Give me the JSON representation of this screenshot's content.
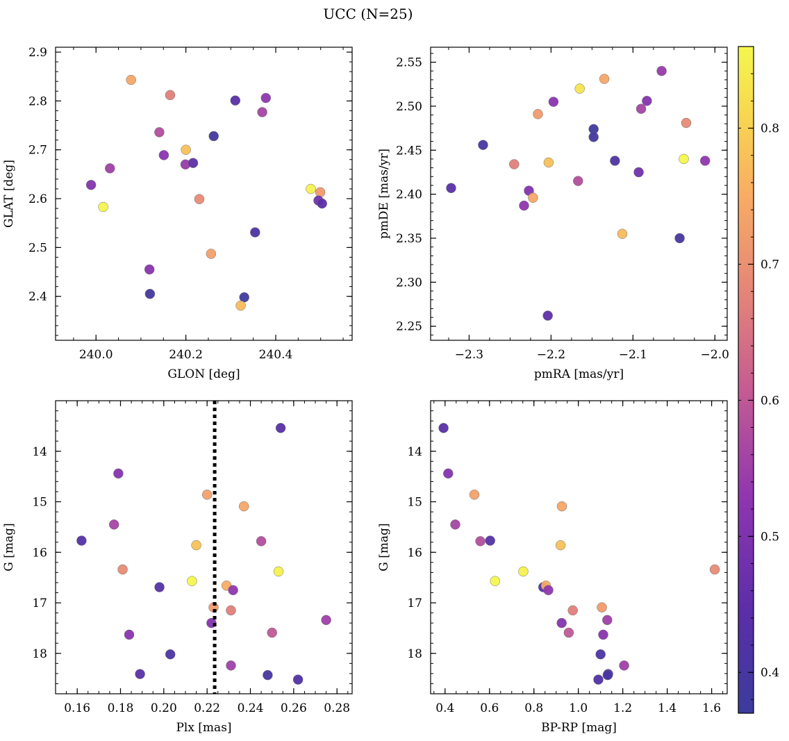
{
  "figure": {
    "title": "UCC (N=25)"
  },
  "colorbar": {
    "range": [
      0.37,
      0.86
    ],
    "ticks": [
      0.4,
      0.5,
      0.6,
      0.7,
      0.8
    ],
    "tick_labels": [
      "0.4",
      "0.5",
      "0.6",
      "0.7",
      "0.8"
    ],
    "colormap": "plasma"
  },
  "chart_data": [
    {
      "type": "scatter",
      "title": "",
      "xlabel": "GLON [deg]",
      "ylabel": "GLAT [deg]",
      "xlim": [
        239.91,
        240.57
      ],
      "ylim": [
        2.31,
        2.91
      ],
      "xticks": [
        240.0,
        240.2,
        240.4
      ],
      "xtick_labels": [
        "240.0",
        "240.2",
        "240.4"
      ],
      "yticks": [
        2.4,
        2.5,
        2.6,
        2.7,
        2.8,
        2.9
      ],
      "ytick_labels": [
        "2.4",
        "2.5",
        "2.6",
        "2.7",
        "2.8",
        "2.9"
      ],
      "invert_y": false,
      "points": [
        {
          "x": 240.078,
          "y": 2.843,
          "c": 0.74
        },
        {
          "x": 240.165,
          "y": 2.812,
          "c": 0.67
        },
        {
          "x": 240.31,
          "y": 2.801,
          "c": 0.44
        },
        {
          "x": 240.378,
          "y": 2.806,
          "c": 0.53
        },
        {
          "x": 240.37,
          "y": 2.777,
          "c": 0.56
        },
        {
          "x": 240.141,
          "y": 2.736,
          "c": 0.58
        },
        {
          "x": 240.262,
          "y": 2.728,
          "c": 0.39
        },
        {
          "x": 240.2,
          "y": 2.7,
          "c": 0.78
        },
        {
          "x": 240.151,
          "y": 2.689,
          "c": 0.52
        },
        {
          "x": 240.199,
          "y": 2.67,
          "c": 0.54
        },
        {
          "x": 240.216,
          "y": 2.673,
          "c": 0.45
        },
        {
          "x": 240.031,
          "y": 2.662,
          "c": 0.55
        },
        {
          "x": 239.989,
          "y": 2.628,
          "c": 0.51
        },
        {
          "x": 240.478,
          "y": 2.62,
          "c": 0.85
        },
        {
          "x": 240.499,
          "y": 2.613,
          "c": 0.72
        },
        {
          "x": 240.495,
          "y": 2.596,
          "c": 0.48
        },
        {
          "x": 240.503,
          "y": 2.59,
          "c": 0.45
        },
        {
          "x": 240.016,
          "y": 2.583,
          "c": 0.86
        },
        {
          "x": 240.23,
          "y": 2.599,
          "c": 0.69
        },
        {
          "x": 240.354,
          "y": 2.531,
          "c": 0.41
        },
        {
          "x": 240.256,
          "y": 2.487,
          "c": 0.73
        },
        {
          "x": 240.119,
          "y": 2.455,
          "c": 0.52
        },
        {
          "x": 240.12,
          "y": 2.405,
          "c": 0.39
        },
        {
          "x": 240.33,
          "y": 2.398,
          "c": 0.38
        },
        {
          "x": 240.322,
          "y": 2.381,
          "c": 0.77
        }
      ]
    },
    {
      "type": "scatter",
      "title": "",
      "xlabel": "pmRA [mas/yr]",
      "ylabel": "pmDE [mas/yr]",
      "xlim": [
        -2.347,
        -1.985
      ],
      "ylim": [
        2.234,
        2.567
      ],
      "xticks": [
        -2.3,
        -2.2,
        -2.1,
        -2.0
      ],
      "xtick_labels": [
        "−2.3",
        "−2.2",
        "−2.1",
        "−2.0"
      ],
      "yticks": [
        2.25,
        2.3,
        2.35,
        2.4,
        2.45,
        2.5,
        2.55
      ],
      "ytick_labels": [
        "2.25",
        "2.30",
        "2.35",
        "2.40",
        "2.45",
        "2.50",
        "2.55"
      ],
      "invert_y": false,
      "points": [
        {
          "x": -2.065,
          "y": 2.54,
          "c": 0.54
        },
        {
          "x": -2.135,
          "y": 2.531,
          "c": 0.74
        },
        {
          "x": -2.165,
          "y": 2.52,
          "c": 0.83
        },
        {
          "x": -2.083,
          "y": 2.506,
          "c": 0.51
        },
        {
          "x": -2.197,
          "y": 2.505,
          "c": 0.52
        },
        {
          "x": -2.09,
          "y": 2.497,
          "c": 0.56
        },
        {
          "x": -2.216,
          "y": 2.491,
          "c": 0.72
        },
        {
          "x": -2.035,
          "y": 2.481,
          "c": 0.69
        },
        {
          "x": -2.148,
          "y": 2.474,
          "c": 0.38
        },
        {
          "x": -2.148,
          "y": 2.465,
          "c": 0.39
        },
        {
          "x": -2.283,
          "y": 2.456,
          "c": 0.4
        },
        {
          "x": -2.038,
          "y": 2.44,
          "c": 0.86
        },
        {
          "x": -2.012,
          "y": 2.438,
          "c": 0.53
        },
        {
          "x": -2.122,
          "y": 2.438,
          "c": 0.41
        },
        {
          "x": -2.203,
          "y": 2.436,
          "c": 0.78
        },
        {
          "x": -2.245,
          "y": 2.434,
          "c": 0.67
        },
        {
          "x": -2.093,
          "y": 2.425,
          "c": 0.48
        },
        {
          "x": -2.167,
          "y": 2.415,
          "c": 0.58
        },
        {
          "x": -2.322,
          "y": 2.407,
          "c": 0.44
        },
        {
          "x": -2.227,
          "y": 2.404,
          "c": 0.51
        },
        {
          "x": -2.222,
          "y": 2.396,
          "c": 0.74
        },
        {
          "x": -2.233,
          "y": 2.387,
          "c": 0.53
        },
        {
          "x": -2.113,
          "y": 2.355,
          "c": 0.77
        },
        {
          "x": -2.043,
          "y": 2.35,
          "c": 0.4
        },
        {
          "x": -2.204,
          "y": 2.262,
          "c": 0.45
        }
      ]
    },
    {
      "type": "scatter",
      "title": "",
      "xlabel": "Plx [mas]",
      "ylabel": "G [mag]",
      "xlim": [
        0.15,
        0.287
      ],
      "ylim": [
        13.0,
        18.8
      ],
      "xticks": [
        0.16,
        0.18,
        0.2,
        0.22,
        0.24,
        0.26,
        0.28
      ],
      "xtick_labels": [
        "0.16",
        "0.18",
        "0.20",
        "0.22",
        "0.24",
        "0.26",
        "0.28"
      ],
      "yticks": [
        14,
        15,
        16,
        17,
        18
      ],
      "ytick_labels": [
        "14",
        "15",
        "16",
        "17",
        "18"
      ],
      "invert_y": true,
      "vline": {
        "x": 0.2235,
        "style": "dotted"
      },
      "points": [
        {
          "x": 0.254,
          "y": 13.54,
          "c": 0.44
        },
        {
          "x": 0.179,
          "y": 14.44,
          "c": 0.51
        },
        {
          "x": 0.22,
          "y": 14.86,
          "c": 0.73
        },
        {
          "x": 0.237,
          "y": 15.09,
          "c": 0.74
        },
        {
          "x": 0.177,
          "y": 15.45,
          "c": 0.56
        },
        {
          "x": 0.162,
          "y": 15.77,
          "c": 0.43
        },
        {
          "x": 0.245,
          "y": 15.78,
          "c": 0.58
        },
        {
          "x": 0.215,
          "y": 15.86,
          "c": 0.78
        },
        {
          "x": 0.181,
          "y": 16.34,
          "c": 0.69
        },
        {
          "x": 0.253,
          "y": 16.38,
          "c": 0.85
        },
        {
          "x": 0.213,
          "y": 16.57,
          "c": 0.86
        },
        {
          "x": 0.198,
          "y": 16.69,
          "c": 0.43
        },
        {
          "x": 0.229,
          "y": 16.66,
          "c": 0.75
        },
        {
          "x": 0.232,
          "y": 16.75,
          "c": 0.53
        },
        {
          "x": 0.223,
          "y": 17.09,
          "c": 0.72
        },
        {
          "x": 0.231,
          "y": 17.15,
          "c": 0.67
        },
        {
          "x": 0.275,
          "y": 17.34,
          "c": 0.55
        },
        {
          "x": 0.222,
          "y": 17.4,
          "c": 0.51
        },
        {
          "x": 0.25,
          "y": 17.59,
          "c": 0.6
        },
        {
          "x": 0.184,
          "y": 17.63,
          "c": 0.52
        },
        {
          "x": 0.203,
          "y": 18.02,
          "c": 0.41
        },
        {
          "x": 0.189,
          "y": 18.41,
          "c": 0.44
        },
        {
          "x": 0.231,
          "y": 18.24,
          "c": 0.55
        },
        {
          "x": 0.248,
          "y": 18.43,
          "c": 0.4
        },
        {
          "x": 0.262,
          "y": 18.52,
          "c": 0.42
        }
      ]
    },
    {
      "type": "scatter",
      "title": "",
      "xlabel": "BP-RP [mag]",
      "ylabel": "G [mag]",
      "xlim": [
        0.335,
        1.67
      ],
      "ylim": [
        13.0,
        18.8
      ],
      "xticks": [
        0.4,
        0.6,
        0.8,
        1.0,
        1.2,
        1.4,
        1.6
      ],
      "xtick_labels": [
        "0.4",
        "0.6",
        "0.8",
        "1.0",
        "1.2",
        "1.4",
        "1.6"
      ],
      "yticks": [
        14,
        15,
        16,
        17,
        18
      ],
      "ytick_labels": [
        "14",
        "15",
        "16",
        "17",
        "18"
      ],
      "invert_y": true,
      "points": [
        {
          "x": 0.393,
          "y": 13.54,
          "c": 0.44
        },
        {
          "x": 0.414,
          "y": 14.44,
          "c": 0.51
        },
        {
          "x": 0.532,
          "y": 14.86,
          "c": 0.73
        },
        {
          "x": 0.926,
          "y": 15.09,
          "c": 0.74
        },
        {
          "x": 0.446,
          "y": 15.45,
          "c": 0.56
        },
        {
          "x": 0.559,
          "y": 15.78,
          "c": 0.58
        },
        {
          "x": 0.603,
          "y": 15.77,
          "c": 0.43
        },
        {
          "x": 0.92,
          "y": 15.86,
          "c": 0.78
        },
        {
          "x": 1.614,
          "y": 16.34,
          "c": 0.69
        },
        {
          "x": 0.752,
          "y": 16.38,
          "c": 0.85
        },
        {
          "x": 0.625,
          "y": 16.57,
          "c": 0.86
        },
        {
          "x": 0.842,
          "y": 16.69,
          "c": 0.43
        },
        {
          "x": 0.854,
          "y": 16.66,
          "c": 0.75
        },
        {
          "x": 0.865,
          "y": 16.75,
          "c": 0.53
        },
        {
          "x": 1.106,
          "y": 17.09,
          "c": 0.72
        },
        {
          "x": 0.975,
          "y": 17.15,
          "c": 0.67
        },
        {
          "x": 1.13,
          "y": 17.34,
          "c": 0.55
        },
        {
          "x": 0.925,
          "y": 17.4,
          "c": 0.51
        },
        {
          "x": 0.957,
          "y": 17.59,
          "c": 0.6
        },
        {
          "x": 1.112,
          "y": 17.63,
          "c": 0.52
        },
        {
          "x": 1.1,
          "y": 18.02,
          "c": 0.41
        },
        {
          "x": 1.134,
          "y": 18.41,
          "c": 0.44
        },
        {
          "x": 1.206,
          "y": 18.24,
          "c": 0.55
        },
        {
          "x": 1.132,
          "y": 18.43,
          "c": 0.4
        },
        {
          "x": 1.09,
          "y": 18.52,
          "c": 0.42
        }
      ]
    }
  ]
}
